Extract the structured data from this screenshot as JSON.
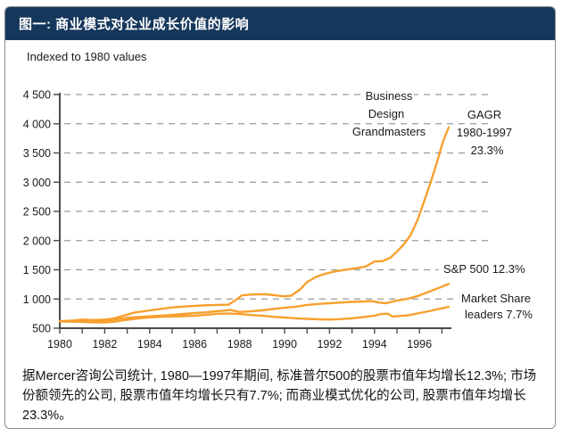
{
  "header": {
    "title": "图一: 商业模式对企业成长价值的影响"
  },
  "chart_data": {
    "type": "line",
    "subtitle": "Indexed to 1980 values",
    "line_color": "#F7A02E",
    "grid": true,
    "x_axis": {
      "min": 1980,
      "max": 1997.3,
      "tick_step": 1,
      "labels": [
        "1980",
        "1982",
        "1984",
        "1986",
        "1988",
        "1990",
        "1992",
        "1994",
        "1996"
      ]
    },
    "y_axis": {
      "min": 500,
      "max": 4500,
      "step": 500,
      "labels": [
        "500",
        "1 000",
        "1 500",
        "2 000",
        "2 500",
        "3 000",
        "3 500",
        "4 000",
        "4 500"
      ]
    },
    "series": [
      {
        "name": "Business Design Grandmasters",
        "cagr": "23.3%",
        "points": [
          [
            1980,
            620
          ],
          [
            1980.6,
            632
          ],
          [
            1981,
            648
          ],
          [
            1981.5,
            640
          ],
          [
            1982,
            648
          ],
          [
            1982.4,
            665
          ],
          [
            1982.8,
            710
          ],
          [
            1983.3,
            765
          ],
          [
            1984,
            805
          ],
          [
            1984.6,
            835
          ],
          [
            1985,
            855
          ],
          [
            1985.6,
            872
          ],
          [
            1986,
            882
          ],
          [
            1986.5,
            893
          ],
          [
            1987,
            898
          ],
          [
            1987.5,
            902
          ],
          [
            1987.8,
            975
          ],
          [
            1988.1,
            1062
          ],
          [
            1988.6,
            1078
          ],
          [
            1989.2,
            1080
          ],
          [
            1989.6,
            1062
          ],
          [
            1990,
            1045
          ],
          [
            1990.3,
            1058
          ],
          [
            1990.7,
            1165
          ],
          [
            1991,
            1290
          ],
          [
            1991.4,
            1378
          ],
          [
            1991.8,
            1432
          ],
          [
            1992.2,
            1468
          ],
          [
            1992.7,
            1502
          ],
          [
            1993.2,
            1528
          ],
          [
            1993.6,
            1555
          ],
          [
            1994,
            1640
          ],
          [
            1994.35,
            1648
          ],
          [
            1994.7,
            1705
          ],
          [
            1995,
            1812
          ],
          [
            1995.3,
            1935
          ],
          [
            1995.6,
            2090
          ],
          [
            1995.9,
            2340
          ],
          [
            1996.2,
            2660
          ],
          [
            1996.5,
            3000
          ],
          [
            1996.8,
            3370
          ],
          [
            1997.05,
            3700
          ],
          [
            1997.3,
            3940
          ]
        ]
      },
      {
        "name": "S&P 500",
        "cagr": "12.3%",
        "points": [
          [
            1980,
            618
          ],
          [
            1980.5,
            628
          ],
          [
            1981,
            636
          ],
          [
            1981.5,
            625
          ],
          [
            1982,
            622
          ],
          [
            1982.5,
            652
          ],
          [
            1983,
            678
          ],
          [
            1983.5,
            692
          ],
          [
            1984,
            703
          ],
          [
            1984.5,
            715
          ],
          [
            1985,
            728
          ],
          [
            1985.5,
            745
          ],
          [
            1986,
            758
          ],
          [
            1986.5,
            772
          ],
          [
            1987,
            792
          ],
          [
            1987.6,
            812
          ],
          [
            1988,
            778
          ],
          [
            1988.5,
            788
          ],
          [
            1989,
            806
          ],
          [
            1989.5,
            830
          ],
          [
            1990,
            850
          ],
          [
            1990.5,
            868
          ],
          [
            1991,
            898
          ],
          [
            1991.5,
            915
          ],
          [
            1992,
            928
          ],
          [
            1992.5,
            940
          ],
          [
            1993,
            950
          ],
          [
            1993.5,
            956
          ],
          [
            1993.9,
            962
          ],
          [
            1994.2,
            940
          ],
          [
            1994.5,
            928
          ],
          [
            1995,
            972
          ],
          [
            1995.5,
            1005
          ],
          [
            1996,
            1060
          ],
          [
            1996.5,
            1135
          ],
          [
            1997,
            1210
          ],
          [
            1997.3,
            1258
          ]
        ]
      },
      {
        "name": "Market Share leaders",
        "cagr": "7.7%",
        "points": [
          [
            1980,
            616
          ],
          [
            1980.5,
            612
          ],
          [
            1981,
            608
          ],
          [
            1981.5,
            600
          ],
          [
            1982,
            597
          ],
          [
            1982.5,
            614
          ],
          [
            1983,
            645
          ],
          [
            1983.5,
            668
          ],
          [
            1984,
            684
          ],
          [
            1984.5,
            695
          ],
          [
            1985,
            700
          ],
          [
            1985.5,
            706
          ],
          [
            1986,
            712
          ],
          [
            1986.5,
            728
          ],
          [
            1987,
            748
          ],
          [
            1987.5,
            752
          ],
          [
            1988,
            742
          ],
          [
            1988.5,
            726
          ],
          [
            1989,
            712
          ],
          [
            1989.5,
            696
          ],
          [
            1990,
            682
          ],
          [
            1990.5,
            670
          ],
          [
            1991,
            660
          ],
          [
            1991.5,
            652
          ],
          [
            1992,
            648
          ],
          [
            1992.5,
            655
          ],
          [
            1993,
            670
          ],
          [
            1993.5,
            690
          ],
          [
            1994,
            715
          ],
          [
            1994.3,
            742
          ],
          [
            1994.6,
            748
          ],
          [
            1994.8,
            700
          ],
          [
            1995,
            704
          ],
          [
            1995.5,
            720
          ],
          [
            1996,
            760
          ],
          [
            1996.5,
            798
          ],
          [
            1997,
            840
          ],
          [
            1997.3,
            866
          ]
        ]
      }
    ],
    "annotations": {
      "grandmasters_label": [
        "Business",
        "Design",
        "Grandmasters"
      ],
      "gagr_label": [
        "GAGR",
        "1980-1997",
        "23.3%"
      ],
      "sp500_label": "S&P 500 12.3%",
      "market_share_label": [
        "Market Share",
        "leaders 7.7%"
      ]
    }
  },
  "footnote": "据Mercer咨询公司统计, 1980—1997年期间, 标准普尔500的股票市值年均增长12.3%; 市场份额领先的公司, 股票市值年均增长只有7.7%; 而商业模式优化的公司, 股票市值年均增长23.3%。"
}
